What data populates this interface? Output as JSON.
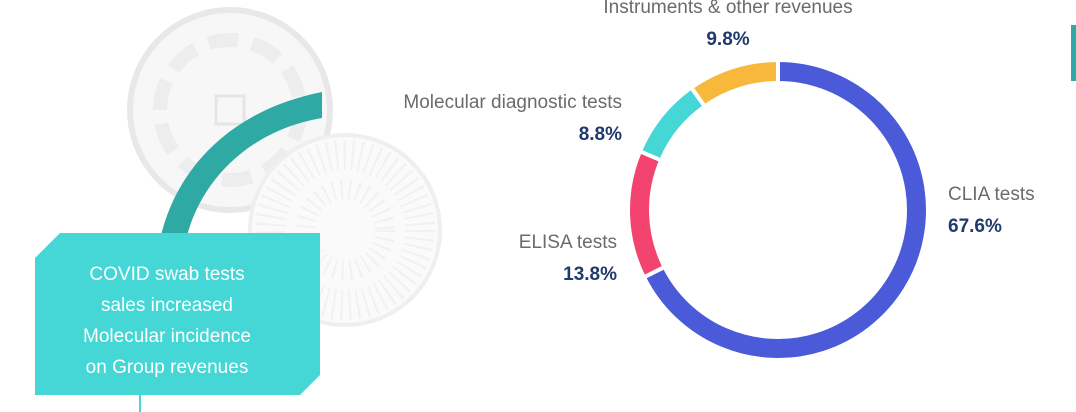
{
  "chart_data": {
    "type": "donut",
    "categories": [
      "CLIA tests",
      "ELISA tests",
      "Molecular diagnostic tests",
      "Instruments & other revenues"
    ],
    "values": [
      67.6,
      13.8,
      8.8,
      9.8
    ],
    "value_labels": [
      "67.6%",
      "13.8%",
      "8.8%",
      "9.8%"
    ],
    "colors": [
      "#4a5ad8",
      "#f2446f",
      "#45d6d6",
      "#f8b83b"
    ],
    "annotation": [
      "COVID swab tests",
      "sales increased",
      "Molecular incidence",
      "on Group revenues"
    ]
  }
}
